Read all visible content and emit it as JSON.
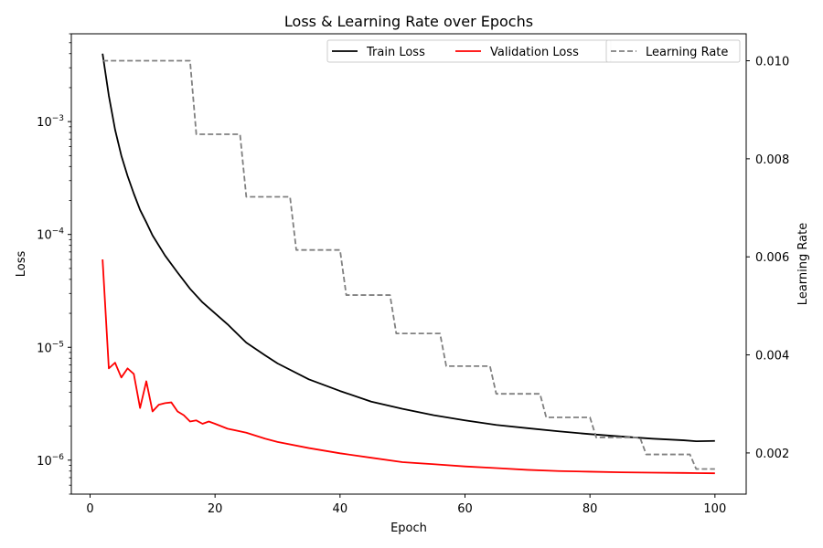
{
  "chart_data": {
    "type": "line",
    "title": "Loss & Learning Rate over Epochs",
    "xlabel": "Epoch",
    "ylabel_left": "Loss",
    "ylabel_right": "Learning Rate",
    "x_ticks": [
      0,
      20,
      40,
      60,
      80,
      100
    ],
    "xlim": [
      -3,
      105
    ],
    "y_left_scale": "log",
    "y_left_lim": [
      5e-07,
      0.006
    ],
    "y_left_ticks": [
      {
        "value": 1e-06,
        "base": "10",
        "exp": "−6"
      },
      {
        "value": 1e-05,
        "base": "10",
        "exp": "−5"
      },
      {
        "value": 0.0001,
        "base": "10",
        "exp": "−4"
      },
      {
        "value": 0.001,
        "base": "10",
        "exp": "−3"
      }
    ],
    "y_right_lim": [
      0.00116,
      0.01055
    ],
    "y_right_ticks": [
      "0.002",
      "0.004",
      "0.006",
      "0.008",
      "0.010"
    ],
    "legend": [
      {
        "name": "Train Loss",
        "color": "#000000",
        "style": "solid"
      },
      {
        "name": "Validation Loss",
        "color": "#ff0000",
        "style": "solid"
      },
      {
        "name": "Learning Rate",
        "color": "#808080",
        "style": "dashed"
      }
    ],
    "legend_placement": "top-right",
    "grid": false,
    "series": [
      {
        "name": "Train Loss",
        "axis": "left",
        "color": "#000000",
        "points": [
          [
            2,
            0.004
          ],
          [
            3,
            0.0017
          ],
          [
            4,
            0.00085
          ],
          [
            5,
            0.0005
          ],
          [
            6,
            0.00033
          ],
          [
            7,
            0.00023
          ],
          [
            8,
            0.000165
          ],
          [
            9,
            0.000128
          ],
          [
            10,
            9.8e-05
          ],
          [
            12,
            6.5e-05
          ],
          [
            14,
            4.6e-05
          ],
          [
            16,
            3.3e-05
          ],
          [
            18,
            2.5e-05
          ],
          [
            20,
            2e-05
          ],
          [
            22,
            1.6e-05
          ],
          [
            25,
            1.1e-05
          ],
          [
            28,
            8.5e-06
          ],
          [
            30,
            7.2e-06
          ],
          [
            35,
            5.2e-06
          ],
          [
            40,
            4.1e-06
          ],
          [
            45,
            3.3e-06
          ],
          [
            50,
            2.85e-06
          ],
          [
            55,
            2.5e-06
          ],
          [
            60,
            2.25e-06
          ],
          [
            65,
            2.05e-06
          ],
          [
            70,
            1.92e-06
          ],
          [
            75,
            1.8e-06
          ],
          [
            80,
            1.7e-06
          ],
          [
            85,
            1.62e-06
          ],
          [
            90,
            1.55e-06
          ],
          [
            95,
            1.5e-06
          ],
          [
            97,
            1.47e-06
          ],
          [
            100,
            1.48e-06
          ]
        ]
      },
      {
        "name": "Validation Loss",
        "axis": "left",
        "color": "#ff0000",
        "points": [
          [
            2,
            6e-05
          ],
          [
            3,
            6.5e-06
          ],
          [
            4,
            7.3e-06
          ],
          [
            5,
            5.4e-06
          ],
          [
            6,
            6.5e-06
          ],
          [
            7,
            5.8e-06
          ],
          [
            8,
            2.9e-06
          ],
          [
            9,
            5e-06
          ],
          [
            10,
            2.7e-06
          ],
          [
            11,
            3.1e-06
          ],
          [
            12,
            3.2e-06
          ],
          [
            13,
            3.25e-06
          ],
          [
            14,
            2.7e-06
          ],
          [
            15,
            2.5e-06
          ],
          [
            16,
            2.2e-06
          ],
          [
            17,
            2.25e-06
          ],
          [
            18,
            2.1e-06
          ],
          [
            19,
            2.2e-06
          ],
          [
            20,
            2.1e-06
          ],
          [
            22,
            1.9e-06
          ],
          [
            25,
            1.75e-06
          ],
          [
            28,
            1.55e-06
          ],
          [
            30,
            1.45e-06
          ],
          [
            35,
            1.28e-06
          ],
          [
            40,
            1.15e-06
          ],
          [
            45,
            1.05e-06
          ],
          [
            50,
            9.6e-07
          ],
          [
            55,
            9.2e-07
          ],
          [
            60,
            8.8e-07
          ],
          [
            65,
            8.5e-07
          ],
          [
            70,
            8.2e-07
          ],
          [
            75,
            8e-07
          ],
          [
            80,
            7.9e-07
          ],
          [
            85,
            7.8e-07
          ],
          [
            90,
            7.75e-07
          ],
          [
            95,
            7.7e-07
          ],
          [
            100,
            7.65e-07
          ]
        ]
      },
      {
        "name": "Learning Rate",
        "axis": "right",
        "color": "#808080",
        "style": "dashed",
        "points": [
          [
            2,
            0.01
          ],
          [
            16,
            0.01
          ],
          [
            17,
            0.0085
          ],
          [
            24,
            0.0085
          ],
          [
            25,
            0.007225
          ],
          [
            32,
            0.007225
          ],
          [
            33,
            0.00614
          ],
          [
            40,
            0.00614
          ],
          [
            41,
            0.00522
          ],
          [
            48,
            0.00522
          ],
          [
            49,
            0.004437
          ],
          [
            56,
            0.004437
          ],
          [
            57,
            0.003771
          ],
          [
            64,
            0.003771
          ],
          [
            65,
            0.003206
          ],
          [
            72,
            0.003206
          ],
          [
            73,
            0.002725
          ],
          [
            80,
            0.002725
          ],
          [
            81,
            0.002316
          ],
          [
            88,
            0.002316
          ],
          [
            89,
            0.001969
          ],
          [
            96,
            0.001969
          ],
          [
            97,
            0.001673
          ],
          [
            100,
            0.001673
          ]
        ]
      }
    ]
  }
}
